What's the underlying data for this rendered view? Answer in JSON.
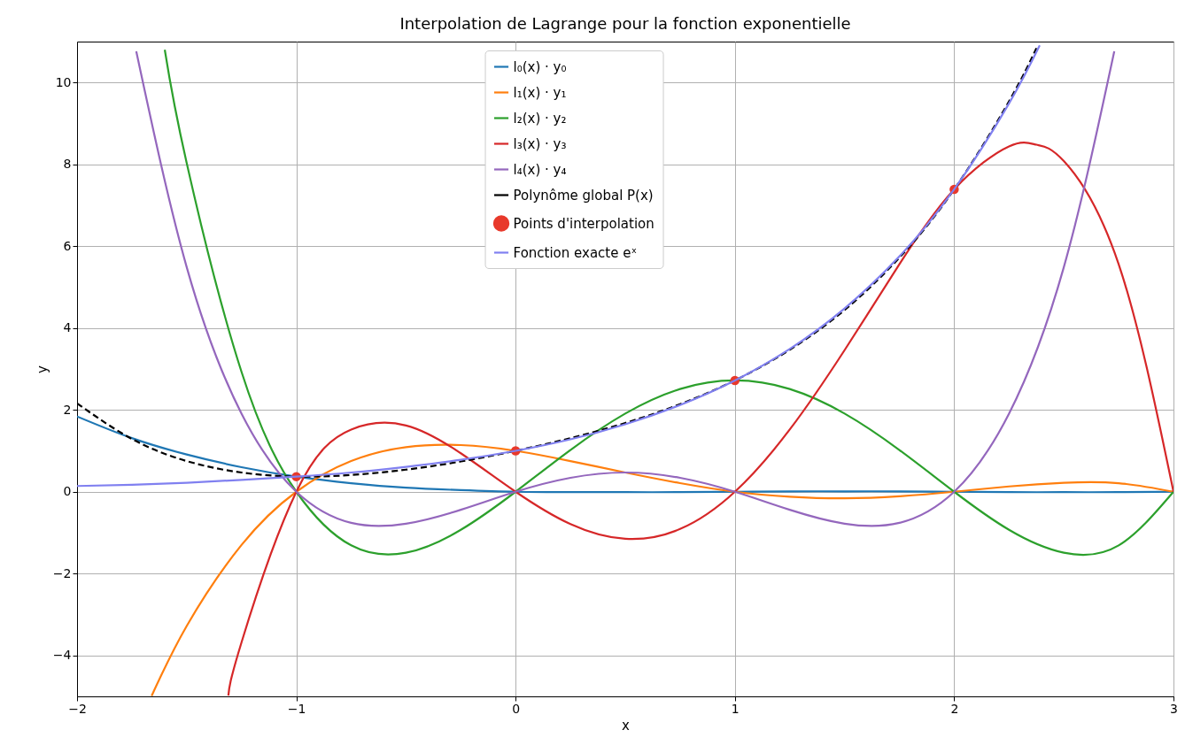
{
  "chart_data": {
    "type": "line",
    "title": "Interpolation de Lagrange pour la fonction exponentielle",
    "xlabel": "x",
    "ylabel": "y",
    "xlim": [
      -2,
      3
    ],
    "xticks": [
      -2,
      -1,
      0,
      1,
      2,
      3
    ],
    "ylim": [
      -5,
      11
    ],
    "yticks": [
      -4,
      -2,
      0,
      2,
      4,
      6,
      8,
      10
    ],
    "grid": true,
    "legend": "top",
    "series": [
      {
        "name": "l₀(x) · y₀",
        "color": "#1f77b4",
        "x": [
          -2,
          -1.75,
          -1.5,
          -1.25,
          -1,
          -0.75,
          -0.5,
          -0.25,
          0,
          0.25,
          0.5,
          0.75,
          1,
          1.25,
          1.5,
          1.75,
          2,
          2.25,
          2.5,
          2.75,
          3
        ],
        "values": [
          1.84,
          1.31,
          0.91,
          0.6,
          0.37,
          0.21,
          0.1,
          0.04,
          0,
          -0.01,
          -0.01,
          -0.01,
          0,
          0.01,
          0.01,
          0.01,
          0,
          -0.01,
          -0.01,
          -0.01,
          0
        ]
      },
      {
        "name": "l₁(x) · y₁",
        "color": "#ff7f0e",
        "x": [
          -1.66,
          -1.5,
          -1.25,
          -1,
          -0.75,
          -0.5,
          -0.25,
          0,
          0.25,
          0.5,
          0.75,
          1,
          1.25,
          1.5,
          1.75,
          2,
          2.25,
          2.5,
          2.75,
          3
        ],
        "values": [
          -4.99,
          -3.28,
          -1.3,
          0,
          0.75,
          1.09,
          1.14,
          1,
          0.75,
          0.47,
          0.21,
          0,
          -0.12,
          -0.16,
          -0.11,
          0,
          0.13,
          0.22,
          0.21,
          0
        ]
      },
      {
        "name": "l₂(x) · y₂",
        "color": "#2ca02c",
        "x": [
          -1.6,
          -1.5,
          -1.25,
          -1,
          -0.75,
          -0.5,
          -0.25,
          0,
          0.25,
          0.5,
          0.75,
          1,
          1.25,
          1.5,
          1.75,
          2,
          2.25,
          2.5,
          2.75,
          3
        ],
        "values": [
          10.8,
          8.03,
          2.93,
          0,
          -1.31,
          -1.49,
          -0.93,
          0,
          1.02,
          1.91,
          2.51,
          2.72,
          2.51,
          1.91,
          1.02,
          0,
          -0.93,
          -1.49,
          -1.31,
          0
        ]
      },
      {
        "name": "l₃(x) · y₃",
        "color": "#d62728",
        "x": [
          -1.31,
          -1.25,
          -1,
          -0.75,
          -0.5,
          -0.25,
          0,
          0.25,
          0.5,
          0.75,
          1,
          1.25,
          1.5,
          1.75,
          2,
          2.25,
          2.375,
          2.5,
          2.75,
          3
        ],
        "values": [
          -4.98,
          -3.68,
          0,
          1.52,
          1.62,
          0.94,
          0,
          -0.79,
          -1.15,
          -0.91,
          0,
          1.52,
          3.46,
          5.56,
          7.39,
          8.44,
          8.48,
          8.08,
          5.56,
          0
        ]
      },
      {
        "name": "l₄(x) · y₄",
        "color": "#9467bd",
        "x": [
          -1.73,
          -1.5,
          -1.25,
          -1,
          -0.75,
          -0.5,
          -0.25,
          0,
          0.25,
          0.5,
          0.75,
          1,
          1.25,
          1.5,
          1.75,
          2,
          2.25,
          2.5,
          2.73
        ],
        "values": [
          10.76,
          5.49,
          1.91,
          0,
          -0.76,
          -0.78,
          -0.44,
          0,
          0.34,
          0.47,
          0.34,
          0,
          -0.44,
          -0.78,
          -0.76,
          0,
          1.91,
          5.49,
          10.76
        ]
      },
      {
        "name": "Polynôme global P(x)",
        "line_style": "dashed",
        "color": "#000000",
        "x": [
          -2,
          -1.75,
          -1.5,
          -1.25,
          -1,
          -0.75,
          -0.5,
          -0.25,
          0,
          0.25,
          0.5,
          0.75,
          1,
          1.25,
          1.5,
          1.75,
          2,
          2.25,
          2.375
        ],
        "values": [
          2.16,
          1.29,
          0.75,
          0.47,
          0.37,
          0.41,
          0.54,
          0.74,
          1,
          1.31,
          1.68,
          2.14,
          2.72,
          3.47,
          4.44,
          5.72,
          7.39,
          9.54,
          10.84
        ]
      },
      {
        "name": "Points d'interpolation",
        "type": "scatter",
        "marker": "circle",
        "color": "#e8392b",
        "x": [
          -1,
          0,
          1,
          2
        ],
        "values": [
          0.37,
          1,
          2.72,
          7.39
        ]
      },
      {
        "name": "Fonction exacte eˣ",
        "color": "#8080f0",
        "x": [
          -2,
          -1.75,
          -1.5,
          -1.25,
          -1,
          -0.75,
          -0.5,
          -0.25,
          0,
          0.25,
          0.5,
          0.75,
          1,
          1.25,
          1.5,
          1.75,
          2,
          2.25,
          2.39
        ],
        "values": [
          0.14,
          0.17,
          0.22,
          0.29,
          0.37,
          0.47,
          0.61,
          0.78,
          1,
          1.28,
          1.65,
          2.12,
          2.72,
          3.49,
          4.48,
          5.75,
          7.39,
          9.49,
          10.91
        ]
      }
    ]
  }
}
